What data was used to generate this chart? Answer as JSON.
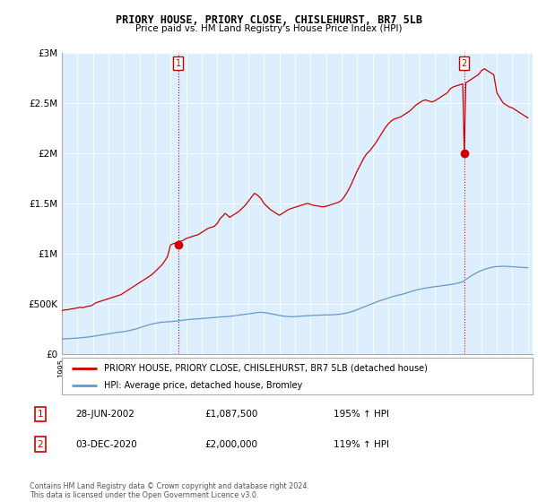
{
  "title": "PRIORY HOUSE, PRIORY CLOSE, CHISLEHURST, BR7 5LB",
  "subtitle": "Price paid vs. HM Land Registry's House Price Index (HPI)",
  "legend_line1": "PRIORY HOUSE, PRIORY CLOSE, CHISLEHURST, BR7 5LB (detached house)",
  "legend_line2": "HPI: Average price, detached house, Bromley",
  "footnote": "Contains HM Land Registry data © Crown copyright and database right 2024.\nThis data is licensed under the Open Government Licence v3.0.",
  "marker1_label": "1",
  "marker1_date": "28-JUN-2002",
  "marker1_price": "£1,087,500",
  "marker1_hpi": "195% ↑ HPI",
  "marker2_label": "2",
  "marker2_date": "03-DEC-2020",
  "marker2_price": "£2,000,000",
  "marker2_hpi": "119% ↑ HPI",
  "red_color": "#cc0000",
  "blue_color": "#6699cc",
  "chart_bg_color": "#ddeeff",
  "grid_color": "#ffffff",
  "background_color": "#ffffff",
  "ylim": [
    0,
    3000000
  ],
  "yticks": [
    0,
    500000,
    1000000,
    1500000,
    2000000,
    2500000,
    3000000
  ],
  "ytick_labels": [
    "£0",
    "£500K",
    "£1M",
    "£1.5M",
    "£2M",
    "£2.5M",
    "£3M"
  ],
  "red_x": [
    1995.0,
    1995.1,
    1995.2,
    1995.3,
    1995.4,
    1995.5,
    1995.6,
    1995.7,
    1995.8,
    1995.9,
    1996.0,
    1996.1,
    1996.2,
    1996.3,
    1996.4,
    1996.5,
    1996.6,
    1996.7,
    1996.8,
    1996.9,
    1997.0,
    1997.1,
    1997.2,
    1997.3,
    1997.4,
    1997.5,
    1997.6,
    1997.7,
    1997.8,
    1997.9,
    1998.0,
    1998.2,
    1998.4,
    1998.6,
    1998.8,
    1999.0,
    1999.2,
    1999.4,
    1999.6,
    1999.8,
    2000.0,
    2000.2,
    2000.4,
    2000.6,
    2000.8,
    2001.0,
    2001.2,
    2001.4,
    2001.6,
    2001.8,
    2002.0,
    2002.2,
    2002.4,
    2002.6,
    2002.8,
    2003.0,
    2003.2,
    2003.4,
    2003.6,
    2003.8,
    2004.0,
    2004.2,
    2004.4,
    2004.6,
    2004.8,
    2005.0,
    2005.2,
    2005.4,
    2005.5,
    2005.6,
    2005.8,
    2006.0,
    2006.2,
    2006.4,
    2006.6,
    2006.8,
    2007.0,
    2007.2,
    2007.4,
    2007.6,
    2007.8,
    2008.0,
    2008.2,
    2008.4,
    2008.6,
    2008.8,
    2009.0,
    2009.2,
    2009.4,
    2009.6,
    2009.8,
    2010.0,
    2010.2,
    2010.4,
    2010.6,
    2010.8,
    2011.0,
    2011.2,
    2011.4,
    2011.6,
    2011.8,
    2012.0,
    2012.2,
    2012.4,
    2012.6,
    2012.8,
    2013.0,
    2013.2,
    2013.4,
    2013.6,
    2013.8,
    2014.0,
    2014.2,
    2014.4,
    2014.6,
    2014.8,
    2015.0,
    2015.2,
    2015.4,
    2015.6,
    2015.8,
    2016.0,
    2016.2,
    2016.4,
    2016.6,
    2016.8,
    2017.0,
    2017.2,
    2017.4,
    2017.6,
    2017.8,
    2018.0,
    2018.2,
    2018.4,
    2018.6,
    2018.8,
    2019.0,
    2019.2,
    2019.4,
    2019.6,
    2019.8,
    2020.0,
    2020.2,
    2020.4,
    2020.6,
    2020.8,
    2020.9,
    2021.0,
    2021.2,
    2021.4,
    2021.6,
    2021.8,
    2022.0,
    2022.2,
    2022.4,
    2022.6,
    2022.8,
    2023.0,
    2023.2,
    2023.4,
    2023.6,
    2023.8,
    2024.0,
    2024.2,
    2024.4,
    2024.6,
    2024.8,
    2025.0
  ],
  "red_y": [
    430000,
    435000,
    440000,
    438000,
    442000,
    445000,
    448000,
    450000,
    452000,
    455000,
    458000,
    462000,
    465000,
    460000,
    463000,
    468000,
    472000,
    475000,
    478000,
    480000,
    490000,
    500000,
    510000,
    515000,
    520000,
    525000,
    530000,
    535000,
    540000,
    545000,
    550000,
    560000,
    570000,
    580000,
    590000,
    610000,
    630000,
    650000,
    670000,
    690000,
    710000,
    730000,
    750000,
    770000,
    790000,
    820000,
    850000,
    880000,
    920000,
    970000,
    1087500,
    1100000,
    1110000,
    1120000,
    1130000,
    1150000,
    1160000,
    1170000,
    1180000,
    1190000,
    1210000,
    1230000,
    1250000,
    1260000,
    1270000,
    1300000,
    1350000,
    1380000,
    1400000,
    1390000,
    1360000,
    1380000,
    1400000,
    1420000,
    1450000,
    1480000,
    1520000,
    1560000,
    1600000,
    1580000,
    1550000,
    1500000,
    1470000,
    1440000,
    1420000,
    1400000,
    1380000,
    1400000,
    1420000,
    1440000,
    1450000,
    1460000,
    1470000,
    1480000,
    1490000,
    1500000,
    1490000,
    1480000,
    1475000,
    1470000,
    1465000,
    1470000,
    1480000,
    1490000,
    1500000,
    1510000,
    1530000,
    1570000,
    1620000,
    1680000,
    1750000,
    1820000,
    1880000,
    1940000,
    1990000,
    2020000,
    2060000,
    2100000,
    2150000,
    2200000,
    2250000,
    2290000,
    2320000,
    2340000,
    2350000,
    2360000,
    2380000,
    2400000,
    2420000,
    2450000,
    2480000,
    2500000,
    2520000,
    2530000,
    2520000,
    2510000,
    2520000,
    2540000,
    2560000,
    2580000,
    2600000,
    2640000,
    2660000,
    2670000,
    2680000,
    2690000,
    2000000,
    2700000,
    2720000,
    2740000,
    2760000,
    2780000,
    2820000,
    2840000,
    2820000,
    2800000,
    2780000,
    2600000,
    2550000,
    2500000,
    2480000,
    2460000,
    2450000,
    2430000,
    2410000,
    2390000,
    2370000,
    2350000
  ],
  "blue_x": [
    1995.0,
    1995.2,
    1995.4,
    1995.6,
    1995.8,
    1996.0,
    1996.2,
    1996.4,
    1996.6,
    1996.8,
    1997.0,
    1997.2,
    1997.4,
    1997.6,
    1997.8,
    1998.0,
    1998.2,
    1998.4,
    1998.6,
    1998.8,
    1999.0,
    1999.2,
    1999.4,
    1999.6,
    1999.8,
    2000.0,
    2000.2,
    2000.4,
    2000.6,
    2000.8,
    2001.0,
    2001.2,
    2001.4,
    2001.6,
    2001.8,
    2002.0,
    2002.2,
    2002.4,
    2002.6,
    2002.8,
    2003.0,
    2003.2,
    2003.4,
    2003.6,
    2003.8,
    2004.0,
    2004.2,
    2004.4,
    2004.6,
    2004.8,
    2005.0,
    2005.2,
    2005.4,
    2005.6,
    2005.8,
    2006.0,
    2006.2,
    2006.4,
    2006.6,
    2006.8,
    2007.0,
    2007.2,
    2007.4,
    2007.6,
    2007.8,
    2008.0,
    2008.2,
    2008.4,
    2008.6,
    2008.8,
    2009.0,
    2009.2,
    2009.4,
    2009.6,
    2009.8,
    2010.0,
    2010.2,
    2010.4,
    2010.6,
    2010.8,
    2011.0,
    2011.2,
    2011.4,
    2011.6,
    2011.8,
    2012.0,
    2012.2,
    2012.4,
    2012.6,
    2012.8,
    2013.0,
    2013.2,
    2013.4,
    2013.6,
    2013.8,
    2014.0,
    2014.2,
    2014.4,
    2014.6,
    2014.8,
    2015.0,
    2015.2,
    2015.4,
    2015.6,
    2015.8,
    2016.0,
    2016.2,
    2016.4,
    2016.6,
    2016.8,
    2017.0,
    2017.2,
    2017.4,
    2017.6,
    2017.8,
    2018.0,
    2018.2,
    2018.4,
    2018.6,
    2018.8,
    2019.0,
    2019.2,
    2019.4,
    2019.6,
    2019.8,
    2020.0,
    2020.2,
    2020.4,
    2020.6,
    2020.8,
    2021.0,
    2021.2,
    2021.4,
    2021.6,
    2021.8,
    2022.0,
    2022.2,
    2022.4,
    2022.6,
    2022.8,
    2023.0,
    2023.2,
    2023.4,
    2023.6,
    2023.8,
    2024.0,
    2024.2,
    2024.4,
    2024.6,
    2024.8,
    2025.0
  ],
  "blue_y": [
    148000,
    150000,
    152000,
    154000,
    156000,
    158000,
    161000,
    164000,
    167000,
    170000,
    175000,
    180000,
    185000,
    190000,
    195000,
    200000,
    205000,
    210000,
    215000,
    218000,
    222000,
    228000,
    235000,
    242000,
    250000,
    260000,
    270000,
    280000,
    290000,
    298000,
    305000,
    310000,
    315000,
    318000,
    320000,
    322000,
    325000,
    328000,
    332000,
    336000,
    340000,
    343000,
    346000,
    348000,
    350000,
    352000,
    355000,
    358000,
    360000,
    362000,
    365000,
    368000,
    370000,
    372000,
    374000,
    378000,
    382000,
    386000,
    390000,
    394000,
    398000,
    403000,
    408000,
    412000,
    415000,
    412000,
    408000,
    402000,
    396000,
    390000,
    383000,
    378000,
    374000,
    372000,
    370000,
    372000,
    374000,
    376000,
    378000,
    380000,
    382000,
    384000,
    385000,
    386000,
    387000,
    388000,
    389000,
    390000,
    392000,
    394000,
    398000,
    404000,
    410000,
    418000,
    428000,
    440000,
    452000,
    465000,
    478000,
    490000,
    502000,
    514000,
    526000,
    536000,
    545000,
    555000,
    566000,
    576000,
    584000,
    591000,
    598000,
    608000,
    618000,
    628000,
    636000,
    643000,
    650000,
    656000,
    661000,
    665000,
    669000,
    673000,
    677000,
    681000,
    685000,
    690000,
    696000,
    702000,
    710000,
    718000,
    740000,
    762000,
    782000,
    800000,
    816000,
    830000,
    842000,
    852000,
    860000,
    866000,
    870000,
    872000,
    873000,
    872000,
    870000,
    868000,
    866000,
    864000,
    862000,
    860000,
    858000
  ]
}
